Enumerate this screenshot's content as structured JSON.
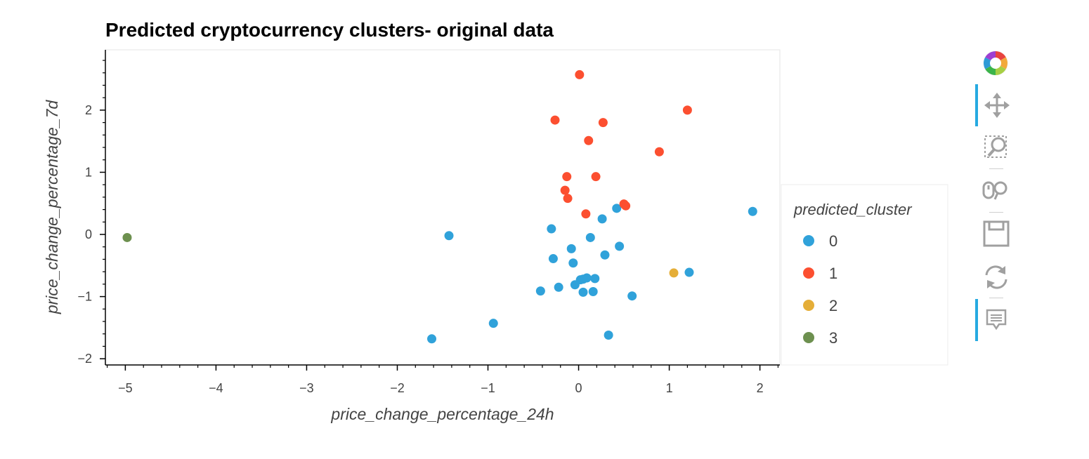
{
  "chart_data": {
    "type": "scatter",
    "title": "Predicted cryptocurrency clusters- original data",
    "xlabel": "price_change_percentage_24h",
    "ylabel": "price_change_percentage_7d",
    "xlim": [
      -5.22,
      2.22
    ],
    "ylim": [
      -2.1,
      2.97
    ],
    "xticks": [
      -5,
      -4,
      -3,
      -2,
      -1,
      0,
      1,
      2
    ],
    "yticks": [
      -2,
      -1,
      0,
      1,
      2
    ],
    "grid": false,
    "legend": {
      "title": "predicted_cluster",
      "placement": "right"
    },
    "series": [
      {
        "name": "0",
        "color": "#30a2da",
        "points": [
          [
            -1.62,
            -1.68
          ],
          [
            -1.43,
            -0.02
          ],
          [
            -0.94,
            -1.43
          ],
          [
            -0.42,
            -0.91
          ],
          [
            -0.3,
            0.09
          ],
          [
            -0.28,
            -0.39
          ],
          [
            -0.22,
            -0.85
          ],
          [
            -0.08,
            -0.23
          ],
          [
            -0.06,
            -0.46
          ],
          [
            -0.04,
            -0.81
          ],
          [
            0.02,
            -0.73
          ],
          [
            0.05,
            -0.72
          ],
          [
            0.05,
            -0.93
          ],
          [
            0.09,
            -0.7
          ],
          [
            0.13,
            -0.05
          ],
          [
            0.16,
            -0.92
          ],
          [
            0.18,
            -0.71
          ],
          [
            0.26,
            0.25
          ],
          [
            0.29,
            -0.33
          ],
          [
            0.33,
            -1.62
          ],
          [
            0.42,
            0.42
          ],
          [
            0.45,
            -0.19
          ],
          [
            0.59,
            -0.99
          ],
          [
            1.22,
            -0.61
          ],
          [
            1.92,
            0.37
          ]
        ]
      },
      {
        "name": "1",
        "color": "#fc4f30",
        "points": [
          [
            0.01,
            2.57
          ],
          [
            -0.26,
            1.84
          ],
          [
            0.27,
            1.8
          ],
          [
            1.2,
            2.0
          ],
          [
            0.11,
            1.51
          ],
          [
            0.89,
            1.33
          ],
          [
            -0.13,
            0.93
          ],
          [
            0.19,
            0.93
          ],
          [
            -0.15,
            0.71
          ],
          [
            -0.12,
            0.58
          ],
          [
            0.5,
            0.49
          ],
          [
            0.52,
            0.46
          ],
          [
            0.08,
            0.33
          ]
        ]
      },
      {
        "name": "2",
        "color": "#e5ae38",
        "points": [
          [
            1.05,
            -0.62
          ]
        ]
      },
      {
        "name": "3",
        "color": "#6d904f",
        "points": [
          [
            -4.98,
            -0.05
          ]
        ]
      }
    ]
  },
  "toolbar": {
    "tools": [
      {
        "name": "bokeh-logo",
        "icon": "bokeh-logo-icon"
      },
      {
        "name": "pan-tool",
        "icon": "pan-move-icon",
        "active": true
      },
      {
        "name": "box-zoom-tool",
        "icon": "box-zoom-icon",
        "active": false
      },
      {
        "name": "wheel-zoom-tool",
        "icon": "wheel-zoom-icon",
        "active": false
      },
      {
        "name": "save-tool",
        "icon": "save-icon",
        "active": false
      },
      {
        "name": "reset-tool",
        "icon": "reset-icon",
        "active": false
      },
      {
        "name": "hover-tool",
        "icon": "hover-comment-icon",
        "active": true
      }
    ]
  }
}
